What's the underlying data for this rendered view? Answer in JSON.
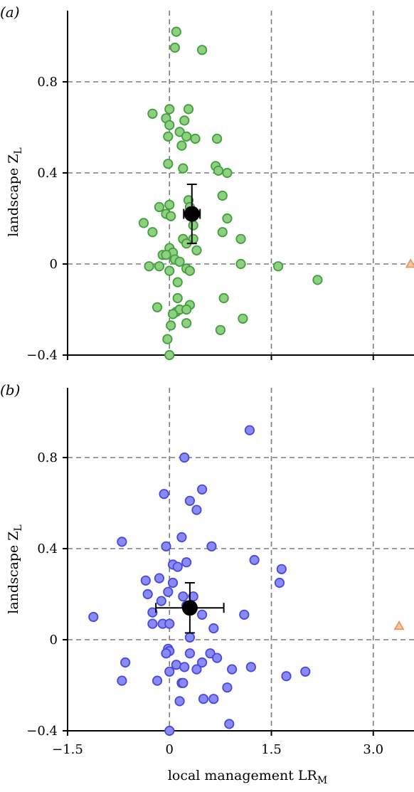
{
  "chart_data": [
    {
      "type": "scatter",
      "panel_label": "(a)",
      "ylabel": "landscape Z",
      "ylabel_sub": "L",
      "xlabel": "",
      "xlabel_sub": "",
      "xlim": [
        -1.5,
        3.6
      ],
      "ylim": [
        -0.4,
        1.1
      ],
      "xticks": [
        -1.5,
        0,
        1.5,
        3.0
      ],
      "xtick_labels": [
        "",
        "",
        "",
        ""
      ],
      "yticks": [
        -0.4,
        0,
        0.4,
        0.8
      ],
      "ytick_labels": [
        "−0.4",
        "0",
        "0.4",
        "0.8"
      ],
      "grid_x": [
        0,
        1.5,
        3.0
      ],
      "grid_y": [
        0,
        0.4,
        0.8
      ],
      "colors": {
        "marker_fill": "#8fcf82",
        "marker_edge": "#3f9f3a",
        "outlier": "#e8975a",
        "mean": "#000000"
      },
      "series": [
        {
          "marker": "circle",
          "points": [
            [
              0.1,
              1.02
            ],
            [
              0.08,
              0.95
            ],
            [
              0.48,
              0.94
            ],
            [
              -0.25,
              0.66
            ],
            [
              -0.05,
              0.64
            ],
            [
              0.0,
              0.68
            ],
            [
              0.28,
              0.68
            ],
            [
              0.22,
              0.63
            ],
            [
              0.0,
              0.61
            ],
            [
              0.15,
              0.58
            ],
            [
              -0.02,
              0.56
            ],
            [
              0.25,
              0.56
            ],
            [
              0.38,
              0.55
            ],
            [
              0.7,
              0.55
            ],
            [
              0.18,
              0.52
            ],
            [
              -0.02,
              0.44
            ],
            [
              0.2,
              0.42
            ],
            [
              0.68,
              0.43
            ],
            [
              0.72,
              0.41
            ],
            [
              0.85,
              0.4
            ],
            [
              0.78,
              0.3
            ],
            [
              0.28,
              0.28
            ],
            [
              0.0,
              0.26
            ],
            [
              0.3,
              0.25
            ],
            [
              -0.15,
              0.25
            ],
            [
              -0.05,
              0.22
            ],
            [
              0.02,
              0.21
            ],
            [
              0.85,
              0.2
            ],
            [
              -0.38,
              0.18
            ],
            [
              0.35,
              0.17
            ],
            [
              -0.25,
              0.14
            ],
            [
              0.78,
              0.14
            ],
            [
              0.2,
              0.11
            ],
            [
              0.35,
              0.11
            ],
            [
              1.05,
              0.11
            ],
            [
              0.25,
              0.09
            ],
            [
              0.0,
              0.07
            ],
            [
              0.4,
              0.06
            ],
            [
              0.05,
              0.05
            ],
            [
              -0.1,
              0.04
            ],
            [
              -0.05,
              0.04
            ],
            [
              0.08,
              0.02
            ],
            [
              0.15,
              0.01
            ],
            [
              1.05,
              0.0
            ],
            [
              -0.3,
              -0.01
            ],
            [
              -0.15,
              -0.01
            ],
            [
              0.25,
              -0.02
            ],
            [
              1.6,
              -0.01
            ],
            [
              0.0,
              -0.03
            ],
            [
              0.3,
              -0.03
            ],
            [
              0.12,
              -0.08
            ],
            [
              2.18,
              -0.07
            ],
            [
              0.12,
              -0.15
            ],
            [
              0.8,
              -0.15
            ],
            [
              0.3,
              -0.18
            ],
            [
              -0.18,
              -0.19
            ],
            [
              0.1,
              -0.21
            ],
            [
              0.15,
              -0.2
            ],
            [
              0.25,
              -0.2
            ],
            [
              0.05,
              -0.22
            ],
            [
              1.08,
              -0.24
            ],
            [
              0.02,
              -0.27
            ],
            [
              0.25,
              -0.26
            ],
            [
              0.75,
              -0.29
            ],
            [
              -0.03,
              -0.33
            ],
            [
              0.0,
              -0.4
            ]
          ]
        },
        {
          "marker": "triangle",
          "points": [
            [
              3.55,
              0.0
            ]
          ]
        }
      ],
      "mean": {
        "x": 0.33,
        "y": 0.22,
        "xerr": 0.12,
        "yerr": 0.13
      }
    },
    {
      "type": "scatter",
      "panel_label": "(b)",
      "ylabel": "landscape Z",
      "ylabel_sub": "L",
      "xlabel": "local management LR",
      "xlabel_sub": "M",
      "xlim": [
        -1.5,
        3.6
      ],
      "ylim": [
        -0.4,
        1.1
      ],
      "xticks": [
        -1.5,
        0,
        1.5,
        3.0
      ],
      "xtick_labels": [
        "−1.5",
        "0",
        "1.5",
        "3.0"
      ],
      "yticks": [
        -0.4,
        0,
        0.4,
        0.8
      ],
      "ytick_labels": [
        "−0.4",
        "0",
        "0.4",
        "0.8"
      ],
      "grid_x": [
        0,
        1.5,
        3.0
      ],
      "grid_y": [
        0,
        0.4,
        0.8
      ],
      "colors": {
        "marker_fill": "#8a8af5",
        "marker_edge": "#4848dc",
        "outlier": "#e8975a",
        "mean": "#000000"
      },
      "series": [
        {
          "marker": "circle",
          "points": [
            [
              1.18,
              0.92
            ],
            [
              0.22,
              0.8
            ],
            [
              0.48,
              0.66
            ],
            [
              -0.08,
              0.64
            ],
            [
              0.3,
              0.61
            ],
            [
              0.4,
              0.57
            ],
            [
              0.18,
              0.45
            ],
            [
              -0.7,
              0.43
            ],
            [
              -0.05,
              0.41
            ],
            [
              0.62,
              0.41
            ],
            [
              1.25,
              0.35
            ],
            [
              0.25,
              0.34
            ],
            [
              0.05,
              0.33
            ],
            [
              0.12,
              0.32
            ],
            [
              1.65,
              0.31
            ],
            [
              1.62,
              0.25
            ],
            [
              -0.35,
              0.26
            ],
            [
              -0.15,
              0.27
            ],
            [
              0.05,
              0.25
            ],
            [
              -0.32,
              0.2
            ],
            [
              -0.02,
              0.21
            ],
            [
              0.2,
              0.19
            ],
            [
              0.35,
              0.19
            ],
            [
              -0.12,
              0.17
            ],
            [
              0.25,
              0.15
            ],
            [
              -1.12,
              0.1
            ],
            [
              -0.25,
              0.12
            ],
            [
              0.48,
              0.11
            ],
            [
              1.1,
              0.11
            ],
            [
              -0.25,
              0.07
            ],
            [
              -0.1,
              0.07
            ],
            [
              0.0,
              0.07
            ],
            [
              0.65,
              0.05
            ],
            [
              0.3,
              0.01
            ],
            [
              -0.02,
              -0.04
            ],
            [
              0.0,
              -0.05
            ],
            [
              -0.05,
              -0.06
            ],
            [
              0.3,
              -0.06
            ],
            [
              0.6,
              -0.06
            ],
            [
              0.7,
              -0.08
            ],
            [
              -0.65,
              -0.1
            ],
            [
              0.1,
              -0.11
            ],
            [
              0.48,
              -0.1
            ],
            [
              0.22,
              -0.12
            ],
            [
              0.4,
              -0.13
            ],
            [
              0.92,
              -0.13
            ],
            [
              1.2,
              -0.12
            ],
            [
              2.0,
              -0.14
            ],
            [
              1.72,
              -0.16
            ],
            [
              0.0,
              -0.14
            ],
            [
              -0.7,
              -0.18
            ],
            [
              -0.18,
              -0.18
            ],
            [
              0.18,
              -0.19
            ],
            [
              0.2,
              -0.19
            ],
            [
              0.85,
              -0.21
            ],
            [
              0.5,
              -0.26
            ],
            [
              0.65,
              -0.26
            ],
            [
              0.15,
              -0.27
            ],
            [
              0.88,
              -0.37
            ],
            [
              0.0,
              -0.4
            ]
          ]
        },
        {
          "marker": "triangle",
          "points": [
            [
              3.38,
              0.06
            ]
          ]
        }
      ],
      "mean": {
        "x": 0.3,
        "y": 0.14,
        "xerr": 0.5,
        "yerr": 0.11
      }
    }
  ]
}
